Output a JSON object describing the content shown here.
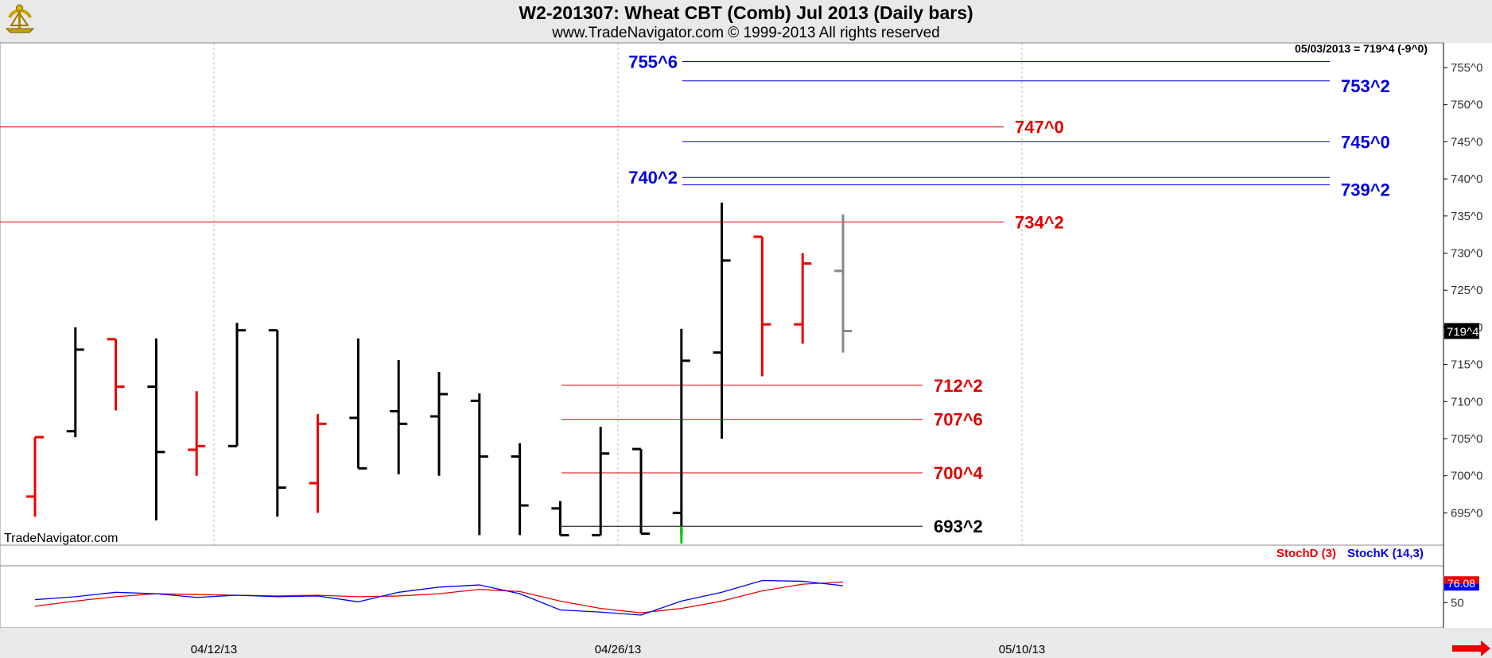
{
  "header": {
    "title": "W2-201307:  Wheat CBT (Comb) Jul 2013  (Daily bars)",
    "subtitle": "www.TradeNavigator.com © 1999-2013 All rights reserved"
  },
  "chart_data": [
    {
      "type": "ohlc",
      "info_label": "05/03/2013 = 719^4 (-9^0)",
      "watermark": "TradeNavigator.com",
      "last_price_label": "719^4",
      "y_range": [
        692,
        759
      ],
      "y_ticks": [
        {
          "value": 695,
          "label": "695^0"
        },
        {
          "value": 700,
          "label": "700^0"
        },
        {
          "value": 705,
          "label": "705^0"
        },
        {
          "value": 710,
          "label": "710^0"
        },
        {
          "value": 715,
          "label": "715^0"
        },
        {
          "value": 720,
          "label": "720^0"
        },
        {
          "value": 725,
          "label": "725^0"
        },
        {
          "value": 730,
          "label": "730^0"
        },
        {
          "value": 735,
          "label": "735^0"
        },
        {
          "value": 740,
          "label": "740^0"
        },
        {
          "value": 745,
          "label": "745^0"
        },
        {
          "value": 750,
          "label": "750^0"
        },
        {
          "value": 755,
          "label": "755^0"
        }
      ],
      "x_ticks": [
        {
          "index": 5,
          "label": "04/12/13"
        },
        {
          "index": 15,
          "label": "04/26/13"
        },
        {
          "index": 25,
          "label": "05/10/13"
        }
      ],
      "colors": {
        "up": "#000000",
        "down": "#ee0000",
        "last": "#888888",
        "green": "#00cc00"
      },
      "bars": [
        {
          "open": 697.2,
          "high": 705.2,
          "low": 694.5,
          "close": 705.2,
          "color": "down"
        },
        {
          "open": 706.0,
          "high": 720.0,
          "low": 705.2,
          "close": 717.0,
          "color": "up"
        },
        {
          "open": 718.4,
          "high": 718.4,
          "low": 708.8,
          "close": 712.0,
          "color": "down"
        },
        {
          "open": 712.0,
          "high": 718.5,
          "low": 694.0,
          "close": 703.2,
          "color": "up"
        },
        {
          "open": 703.5,
          "high": 711.4,
          "low": 700.0,
          "close": 704.0,
          "color": "down"
        },
        {
          "open": 704.0,
          "high": 720.6,
          "low": 704.0,
          "close": 719.6,
          "color": "up"
        },
        {
          "open": 719.6,
          "high": 719.6,
          "low": 694.5,
          "close": 698.4,
          "color": "up"
        },
        {
          "open": 699.0,
          "high": 708.3,
          "low": 695.0,
          "close": 707.0,
          "color": "down"
        },
        {
          "open": 707.8,
          "high": 718.5,
          "low": 701.0,
          "close": 701.0,
          "color": "up"
        },
        {
          "open": 708.7,
          "high": 715.6,
          "low": 700.2,
          "close": 707.0,
          "color": "up"
        },
        {
          "open": 708.0,
          "high": 714.0,
          "low": 700.0,
          "close": 711.0,
          "color": "up"
        },
        {
          "open": 710.1,
          "high": 711.1,
          "low": 692.0,
          "close": 702.6,
          "color": "up"
        },
        {
          "open": 702.6,
          "high": 704.4,
          "low": 692.0,
          "close": 696.0,
          "color": "up"
        },
        {
          "open": 695.6,
          "high": 696.6,
          "low": 692.0,
          "close": 692.0,
          "color": "up"
        },
        {
          "open": 692.0,
          "high": 706.6,
          "low": 692.0,
          "close": 703.0,
          "color": "up"
        },
        {
          "open": 703.6,
          "high": 703.6,
          "low": 692.2,
          "close": 692.2,
          "color": "up"
        },
        {
          "open": 695.0,
          "high": 719.8,
          "low": 692.0,
          "close": 715.5,
          "color": "up"
        },
        {
          "open": 716.6,
          "high": 736.8,
          "low": 705.0,
          "close": 729.0,
          "color": "up"
        },
        {
          "open": 732.2,
          "high": 732.2,
          "low": 713.4,
          "close": 720.4,
          "color": "down"
        },
        {
          "open": 720.4,
          "high": 730.0,
          "low": 717.8,
          "close": 728.6,
          "color": "down"
        },
        {
          "open": 727.6,
          "high": 735.2,
          "low": 716.6,
          "close": 719.5,
          "color": "last"
        }
      ],
      "levels": [
        {
          "value": 755.8,
          "label": "755^6",
          "color": "#0000dd",
          "label_side": "left"
        },
        {
          "value": 753.2,
          "label": "753^2",
          "color": "#0000dd",
          "label_side": "right"
        },
        {
          "value": 747.0,
          "label": "747^0",
          "color": "#dd0000",
          "label_side": "right"
        },
        {
          "value": 745.0,
          "label": "745^0",
          "color": "#0000dd",
          "label_side": "right"
        },
        {
          "value": 740.2,
          "label": "740^2",
          "color": "#0000dd",
          "label_side": "left"
        },
        {
          "value": 739.2,
          "label": "739^2",
          "color": "#0000dd",
          "label_side": "right"
        },
        {
          "value": 734.2,
          "label": "734^2",
          "color": "#dd0000",
          "label_side": "right"
        },
        {
          "value": 712.2,
          "label": "712^2",
          "color": "#dd0000",
          "label_side": "right"
        },
        {
          "value": 707.6,
          "label": "707^6",
          "color": "#dd0000",
          "label_side": "right"
        },
        {
          "value": 700.4,
          "label": "700^4",
          "color": "#dd0000",
          "label_side": "right"
        },
        {
          "value": 693.2,
          "label": "693^2",
          "color": "#000000",
          "label_side": "right"
        }
      ]
    },
    {
      "type": "line",
      "legend": [
        "StochD (3)",
        "StochK (14,3)"
      ],
      "y_range": [
        20,
        100
      ],
      "y_ticks": [
        {
          "value": 50,
          "label": "50"
        }
      ],
      "last_value_label": "76.08",
      "series": [
        {
          "name": "StochD (3)",
          "color": "#ee0000",
          "x": [
            0,
            1,
            2,
            3,
            4,
            5,
            6,
            7,
            8,
            9,
            10,
            11,
            12,
            13,
            14,
            15,
            16,
            17,
            18,
            19,
            20
          ],
          "values": [
            45,
            52,
            58,
            62,
            61,
            60,
            59,
            60,
            58,
            59,
            62,
            68,
            65,
            52,
            42,
            36,
            42,
            52,
            66,
            75,
            78
          ]
        },
        {
          "name": "StochK (14,3)",
          "color": "#0000ee",
          "x": [
            0,
            1,
            2,
            3,
            4,
            5,
            6,
            7,
            8,
            9,
            10,
            11,
            12,
            13,
            14,
            15,
            16,
            17,
            18,
            19,
            20
          ],
          "values": [
            54,
            58,
            64,
            62,
            57,
            60,
            58,
            59,
            51,
            64,
            71,
            74,
            62,
            40,
            37,
            33,
            52,
            64,
            80,
            79,
            73
          ]
        }
      ]
    }
  ]
}
